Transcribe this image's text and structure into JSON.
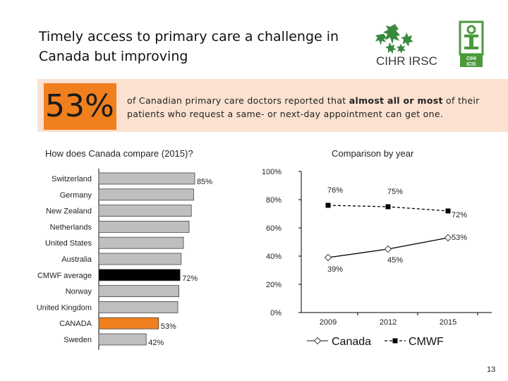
{
  "header": {
    "title": "Timely access to primary care a challenge in Canada but improving"
  },
  "logos": {
    "cihr_text": "CIHR IRSC",
    "cihi_text_line1": "CIHI",
    "cihi_text_line2": "ICIS"
  },
  "banner": {
    "stat": "53%",
    "text_before": "of Canadian primary care doctors reported that ",
    "text_bold": "almost all or most",
    "text_after": " of their patients who request a same- or next-day appointment can get one."
  },
  "chart_data": [
    {
      "type": "bar",
      "orientation": "horizontal",
      "title": "How does Canada compare (2015)?",
      "categories": [
        "Switzerland",
        "Germany",
        "New Zealand",
        "Netherlands",
        "United States",
        "Australia",
        "CMWF average",
        "Norway",
        "United Kingdom",
        "CANADA",
        "Sweden"
      ],
      "values": [
        85,
        84,
        82,
        80,
        75,
        73,
        72,
        71,
        70,
        53,
        42
      ],
      "labels": [
        "85%",
        "",
        "",
        "",
        "",
        "",
        "72%",
        "",
        "",
        "53%",
        "42%"
      ],
      "highlight": {
        "CMWF average": "#000000",
        "CANADA": "#f07f1e"
      },
      "xlim": [
        0,
        100
      ]
    },
    {
      "type": "line",
      "title": "Comparison by year",
      "x": [
        "2009",
        "2012",
        "2015"
      ],
      "ylim": [
        0,
        100
      ],
      "yticks": [
        "0%",
        "20%",
        "40%",
        "60%",
        "80%",
        "100%"
      ],
      "series": [
        {
          "name": "Canada",
          "values": [
            39,
            45,
            53
          ],
          "labels": [
            "39%",
            "45%",
            "53%"
          ],
          "marker": "diamond",
          "style": "solid"
        },
        {
          "name": "CMWF",
          "values": [
            76,
            75,
            72
          ],
          "labels": [
            "76%",
            "75%",
            "72%"
          ],
          "marker": "square",
          "style": "dashed"
        }
      ]
    }
  ],
  "footer": {
    "page_number": "13"
  },
  "colors": {
    "orange": "#f07f1e",
    "banner_bg": "#fbe1cf",
    "bar_gray": "#bfbfbf",
    "cihr_green": "#3a8a3e",
    "cihi_green": "#4a9a3c"
  }
}
